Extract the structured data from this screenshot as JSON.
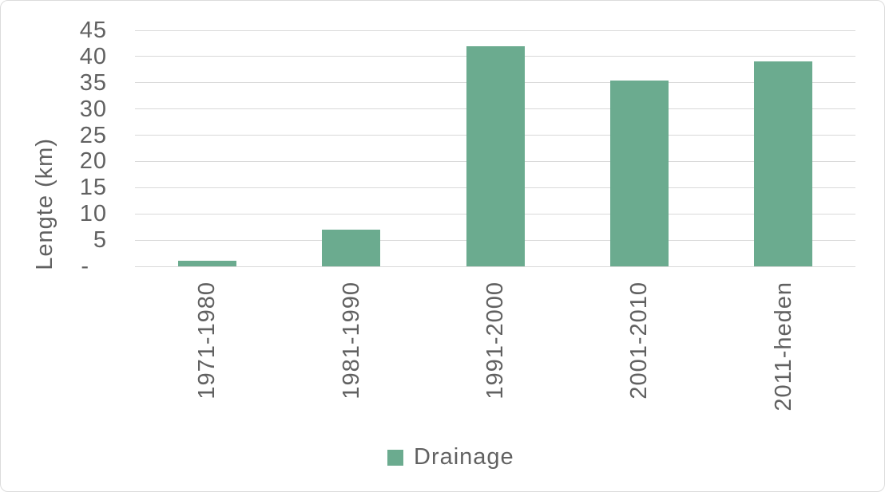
{
  "colors": {
    "bar": "#6bab8f",
    "gridline": "#d9d9d9",
    "text": "#616161",
    "frame_border": "#dcdcdc",
    "background": "#ffffff"
  },
  "chart_data": {
    "type": "bar",
    "title": "",
    "xlabel": "",
    "ylabel": "Lengte (km)",
    "categories": [
      "1971-1980",
      "1981-1990",
      "1991-2000",
      "2001-2010",
      "2011-heden"
    ],
    "series": [
      {
        "name": "Drainage",
        "values": [
          1,
          7,
          42,
          35.5,
          39
        ]
      }
    ],
    "ylim": [
      0,
      45
    ],
    "ytick_step": 5,
    "yticks": [
      {
        "label": "45",
        "value": 45
      },
      {
        "label": "40",
        "value": 40
      },
      {
        "label": "35",
        "value": 35
      },
      {
        "label": "30",
        "value": 30
      },
      {
        "label": "25",
        "value": 25
      },
      {
        "label": "20",
        "value": 20
      },
      {
        "label": "15",
        "value": 15
      },
      {
        "label": "10",
        "value": 10
      },
      {
        "label": "5",
        "value": 5
      },
      {
        "label": "-",
        "value": 0
      }
    ],
    "grid": true,
    "legend": {
      "position": "bottom",
      "entries": [
        {
          "label": "Drainage",
          "swatch_color": "#6bab8f"
        }
      ]
    }
  }
}
